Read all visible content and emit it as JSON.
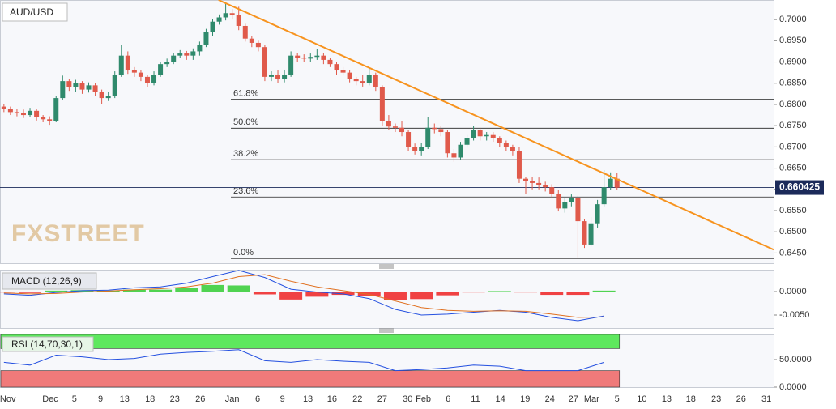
{
  "chart_data": {
    "type": "candlestick",
    "title": "AUD/USD",
    "watermark": "FXSTREET",
    "open": [
      0.6795,
      0.679,
      0.6782,
      0.678,
      0.6775,
      0.6785,
      0.677,
      0.6765,
      0.676,
      0.6815,
      0.6855,
      0.684,
      0.685,
      0.6835,
      0.6845,
      0.683,
      0.6815,
      0.682,
      0.687,
      0.6915,
      0.688,
      0.6875,
      0.6865,
      0.685,
      0.687,
      0.6895,
      0.69,
      0.6915,
      0.692,
      0.6915,
      0.6925,
      0.694,
      0.697,
      0.6995,
      0.7005,
      0.7015,
      0.701,
      0.6985,
      0.6955,
      0.6945,
      0.6935,
      0.6865,
      0.687,
      0.686,
      0.687,
      0.6915,
      0.691,
      0.6908,
      0.6912,
      0.6915,
      0.6905,
      0.6895,
      0.688,
      0.6875,
      0.686,
      0.6855,
      0.685,
      0.687,
      0.684,
      0.676,
      0.6748,
      0.6745,
      0.6735,
      0.67,
      0.669,
      0.67,
      0.6745,
      0.6742,
      0.6735,
      0.6685,
      0.6675,
      0.6705,
      0.672,
      0.674,
      0.6725,
      0.6728,
      0.672,
      0.671,
      0.67,
      0.669,
      0.6625,
      0.662,
      0.6615,
      0.661,
      0.6605,
      0.659,
      0.6555,
      0.657,
      0.658,
      0.6525,
      0.647,
      0.652,
      0.6565,
      0.6605,
      0.6625
    ],
    "high": [
      0.68,
      0.6795,
      0.679,
      0.6788,
      0.6792,
      0.679,
      0.6775,
      0.6772,
      0.682,
      0.6868,
      0.686,
      0.6858,
      0.6855,
      0.6852,
      0.685,
      0.6835,
      0.683,
      0.6878,
      0.694,
      0.6925,
      0.6888,
      0.688,
      0.687,
      0.6878,
      0.69,
      0.6908,
      0.6922,
      0.6928,
      0.6926,
      0.6932,
      0.6948,
      0.6978,
      0.7002,
      0.7012,
      0.704,
      0.7025,
      0.703,
      0.699,
      0.6962,
      0.695,
      0.694,
      0.6878,
      0.688,
      0.6882,
      0.6925,
      0.6922,
      0.6918,
      0.692,
      0.693,
      0.6922,
      0.691,
      0.69,
      0.6888,
      0.688,
      0.6865,
      0.687,
      0.6885,
      0.6875,
      0.6845,
      0.6775,
      0.6755,
      0.676,
      0.674,
      0.6708,
      0.671,
      0.677,
      0.6755,
      0.675,
      0.674,
      0.6695,
      0.6712,
      0.6728,
      0.675,
      0.6745,
      0.6735,
      0.6735,
      0.6725,
      0.6715,
      0.6705,
      0.67,
      0.663,
      0.663,
      0.6628,
      0.6618,
      0.6612,
      0.6598,
      0.658,
      0.6588,
      0.6585,
      0.653,
      0.6535,
      0.6575,
      0.6645,
      0.664,
      0.6638
    ],
    "low": [
      0.6782,
      0.6775,
      0.6772,
      0.6768,
      0.677,
      0.6762,
      0.6758,
      0.6752,
      0.6758,
      0.681,
      0.6832,
      0.683,
      0.6825,
      0.6828,
      0.682,
      0.68,
      0.6808,
      0.6815,
      0.6865,
      0.6872,
      0.6865,
      0.6855,
      0.684,
      0.6845,
      0.6865,
      0.6888,
      0.6895,
      0.691,
      0.6905,
      0.6905,
      0.6915,
      0.6935,
      0.6962,
      0.6988,
      0.6998,
      0.7,
      0.6975,
      0.6948,
      0.6935,
      0.6925,
      0.6855,
      0.6855,
      0.685,
      0.6852,
      0.6865,
      0.69,
      0.69,
      0.69,
      0.6905,
      0.6895,
      0.6888,
      0.687,
      0.6868,
      0.6852,
      0.6845,
      0.6842,
      0.6845,
      0.6832,
      0.675,
      0.674,
      0.6735,
      0.6725,
      0.669,
      0.6682,
      0.668,
      0.6695,
      0.6732,
      0.6725,
      0.6675,
      0.6665,
      0.667,
      0.6698,
      0.6715,
      0.6715,
      0.6715,
      0.6712,
      0.67,
      0.669,
      0.668,
      0.6615,
      0.659,
      0.66,
      0.66,
      0.6595,
      0.658,
      0.6548,
      0.6545,
      0.656,
      0.644,
      0.6462,
      0.6465,
      0.651,
      0.656,
      0.6598,
      0.6598
    ],
    "close": [
      0.679,
      0.6782,
      0.678,
      0.6775,
      0.6785,
      0.677,
      0.6765,
      0.676,
      0.6815,
      0.6855,
      0.684,
      0.685,
      0.6835,
      0.6845,
      0.683,
      0.6815,
      0.682,
      0.687,
      0.6915,
      0.688,
      0.6875,
      0.6865,
      0.685,
      0.687,
      0.6895,
      0.69,
      0.6915,
      0.692,
      0.6915,
      0.6925,
      0.694,
      0.697,
      0.6995,
      0.7005,
      0.7015,
      0.701,
      0.6985,
      0.6955,
      0.6945,
      0.6935,
      0.6865,
      0.687,
      0.686,
      0.687,
      0.6915,
      0.691,
      0.6908,
      0.6912,
      0.6915,
      0.6905,
      0.6895,
      0.688,
      0.6875,
      0.686,
      0.6855,
      0.685,
      0.687,
      0.684,
      0.676,
      0.6748,
      0.6745,
      0.6735,
      0.67,
      0.669,
      0.67,
      0.6745,
      0.6742,
      0.6735,
      0.6685,
      0.6675,
      0.6705,
      0.672,
      0.674,
      0.6725,
      0.6728,
      0.672,
      0.671,
      0.67,
      0.669,
      0.6625,
      0.662,
      0.6615,
      0.661,
      0.6605,
      0.659,
      0.6555,
      0.657,
      0.658,
      0.6525,
      0.647,
      0.652,
      0.6565,
      0.6605,
      0.6625,
      0.6604
    ],
    "up_color": "#2f8a6c",
    "down_color": "#e05a4b",
    "xlim": [
      -0.6,
      118
    ],
    "xticks": [
      {
        "value": 0.6,
        "label": "Nov"
      },
      {
        "value": 7.1,
        "label": "Dec"
      },
      {
        "value": 10.8,
        "label": "5"
      },
      {
        "value": 14.8,
        "label": "9"
      },
      {
        "value": 18.5,
        "label": "13"
      },
      {
        "value": 22.4,
        "label": "18"
      },
      {
        "value": 26.2,
        "label": "23"
      },
      {
        "value": 30.1,
        "label": "26"
      },
      {
        "value": 35,
        "label": "Jan"
      },
      {
        "value": 38.9,
        "label": "6"
      },
      {
        "value": 42.7,
        "label": "9"
      },
      {
        "value": 46.6,
        "label": "13"
      },
      {
        "value": 50.3,
        "label": "16"
      },
      {
        "value": 54.2,
        "label": "22"
      },
      {
        "value": 58,
        "label": "27"
      },
      {
        "value": 61.9,
        "label": "30"
      },
      {
        "value": 64.3,
        "label": "Feb"
      },
      {
        "value": 68.1,
        "label": "6"
      },
      {
        "value": 72.3,
        "label": "11"
      },
      {
        "value": 76.1,
        "label": "14"
      },
      {
        "value": 79.9,
        "label": "19"
      },
      {
        "value": 83.7,
        "label": "24"
      },
      {
        "value": 87.3,
        "label": "27"
      },
      {
        "value": 90.1,
        "label": "Mar"
      },
      {
        "value": 94,
        "label": "5"
      },
      {
        "value": 97.8,
        "label": "10"
      },
      {
        "value": 101.6,
        "label": "13"
      },
      {
        "value": 105.3,
        "label": "18"
      },
      {
        "value": 109.2,
        "label": "23"
      },
      {
        "value": 113,
        "label": "26"
      },
      {
        "value": 116.9,
        "label": "31"
      }
    ],
    "ylim": [
      0.6426,
      0.7046
    ],
    "yticks": [
      {
        "value": 0.7,
        "label": "0.7000"
      },
      {
        "value": 0.695,
        "label": "0.6950"
      },
      {
        "value": 0.69,
        "label": "0.6900"
      },
      {
        "value": 0.685,
        "label": "0.6850"
      },
      {
        "value": 0.68,
        "label": "0.6800"
      },
      {
        "value": 0.675,
        "label": "0.6750"
      },
      {
        "value": 0.67,
        "label": "0.6700"
      },
      {
        "value": 0.665,
        "label": "0.6650"
      },
      {
        "value": 0.66,
        "label": "0.6600"
      },
      {
        "value": 0.655,
        "label": "0.6550"
      },
      {
        "value": 0.65,
        "label": "0.6500"
      },
      {
        "value": 0.645,
        "label": "0.6450"
      }
    ],
    "trendline": {
      "color": "#f7931e",
      "x": [
        32.9,
        118
      ],
      "y": [
        0.7046,
        0.6458
      ]
    },
    "fib_levels": [
      {
        "label": "61.8%",
        "value": 0.6812
      },
      {
        "label": "50.0%",
        "value": 0.6744
      },
      {
        "label": "38.2%",
        "value": 0.667
      },
      {
        "label": "23.6%",
        "value": 0.6582
      },
      {
        "label": "0.0%",
        "value": 0.6437
      }
    ],
    "last_price": {
      "value": 0.660425,
      "label": "0.660425"
    },
    "macd": {
      "label": "MACD (12,26,9)",
      "x": [
        0,
        4,
        8,
        12,
        16,
        20,
        24,
        28,
        32,
        36,
        40,
        44,
        48,
        52,
        56,
        60,
        64,
        68,
        72,
        76,
        80,
        84,
        88,
        92
      ],
      "macd": [
        -0.0005,
        -0.0008,
        -0.0002,
        0.0002,
        0.0003,
        0.0008,
        0.001,
        0.0018,
        0.0032,
        0.0045,
        0.003,
        0.0005,
        -0.0001,
        -0.0005,
        -0.0015,
        -0.0038,
        -0.005,
        -0.0048,
        -0.0044,
        -0.004,
        -0.0044,
        -0.0055,
        -0.0062,
        -0.0052
      ],
      "signal": [
        -0.0003,
        -0.0005,
        -0.0004,
        -0.0001,
        0.0001,
        0.0004,
        0.0006,
        0.001,
        0.0018,
        0.0032,
        0.0036,
        0.0022,
        0.001,
        0.0002,
        -0.0006,
        -0.002,
        -0.0034,
        -0.004,
        -0.0042,
        -0.0041,
        -0.0042,
        -0.0048,
        -0.0055,
        -0.0054
      ],
      "histogram": [
        -0.0002,
        -0.0003,
        0.0002,
        0.0003,
        0.0002,
        0.0004,
        0.0004,
        0.0008,
        0.0014,
        0.0013,
        -0.0006,
        -0.0017,
        -0.0011,
        -0.0007,
        -0.0009,
        -0.0018,
        -0.0016,
        -0.0008,
        -0.0002,
        0.0001,
        -0.0002,
        -0.0007,
        -0.0007,
        0.0002
      ],
      "macd_color": "#2450e0",
      "signal_color": "#e07020",
      "up_color": "#33cc33",
      "down_color": "#ee2222",
      "ylim": [
        -0.00776,
        0.00466
      ],
      "yticks": [
        {
          "value": 0,
          "label": "0.0000"
        },
        {
          "value": -0.005,
          "label": "-0.0050"
        }
      ]
    },
    "rsi": {
      "label": "RSI (14,70,30,1)",
      "x": [
        0,
        4,
        8,
        12,
        16,
        20,
        24,
        28,
        32,
        36,
        40,
        44,
        48,
        52,
        56,
        60,
        64,
        68,
        72,
        76,
        80,
        84,
        88,
        92
      ],
      "values": [
        45,
        40,
        58,
        55,
        50,
        52,
        60,
        63,
        65,
        68,
        48,
        45,
        50,
        47,
        45,
        30,
        32,
        35,
        40,
        38,
        30,
        30,
        30,
        45
      ],
      "color": "#2450e0",
      "overbought": 70,
      "oversold": 30,
      "ylim": [
        0,
        95.6
      ],
      "yticks": [
        {
          "value": 50,
          "label": "50.0000"
        },
        {
          "value": 0,
          "label": "0.0000"
        }
      ]
    }
  }
}
